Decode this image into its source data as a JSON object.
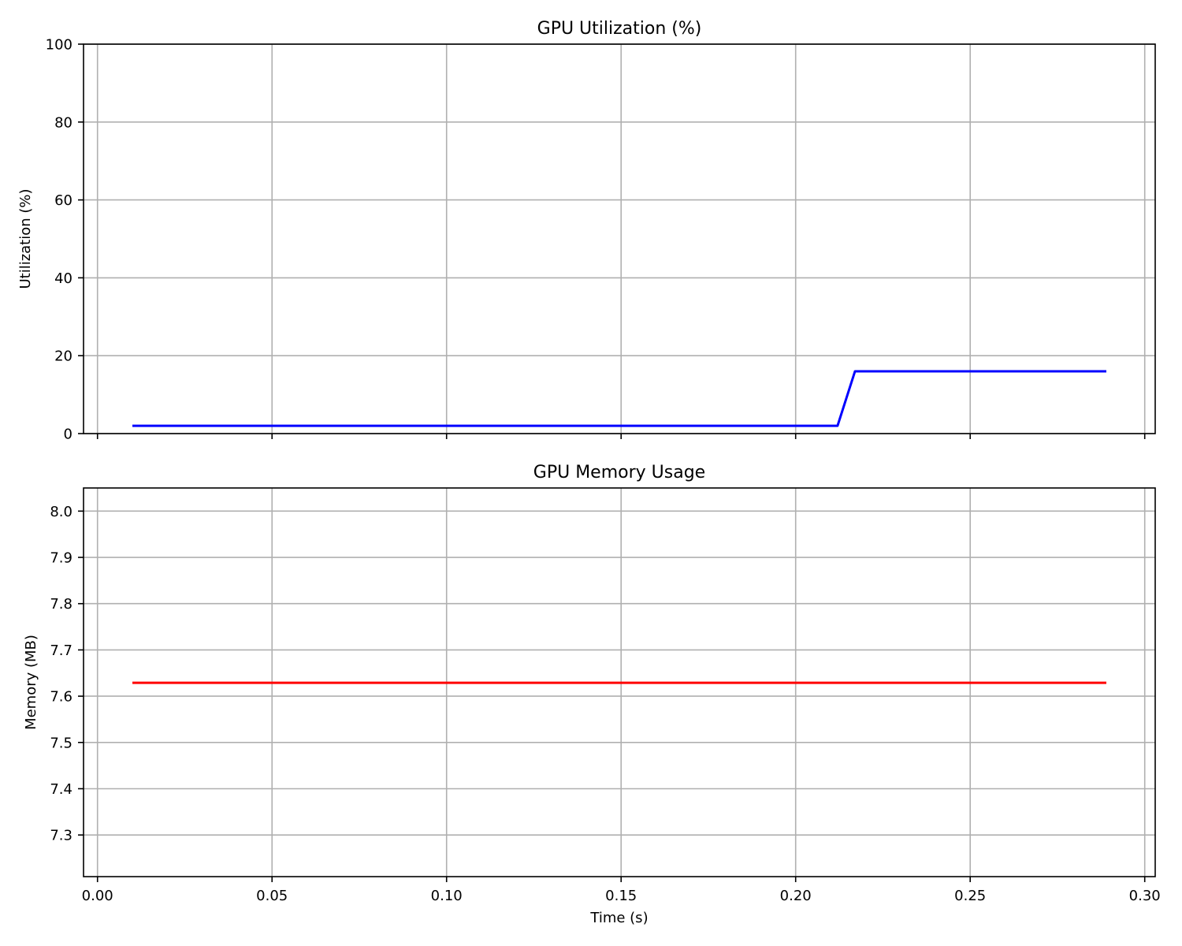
{
  "chart_data": [
    {
      "type": "line",
      "title": "GPU Utilization (%)",
      "xlabel": "",
      "ylabel": "Utilization (%)",
      "xlim": [
        -0.004,
        0.303
      ],
      "ylim": [
        0,
        100
      ],
      "xticks": [
        0.0,
        0.05,
        0.1,
        0.15,
        0.2,
        0.25,
        0.3
      ],
      "xtick_labels": [
        "",
        "",
        "",
        "",
        "",
        "",
        ""
      ],
      "yticks": [
        0,
        20,
        40,
        60,
        80,
        100
      ],
      "ytick_labels": [
        "0",
        "20",
        "40",
        "60",
        "80",
        "100"
      ],
      "grid": true,
      "series": [
        {
          "color": "#0000ff",
          "x": [
            0.01,
            0.212,
            0.217,
            0.289
          ],
          "y": [
            2,
            2,
            16,
            16
          ]
        }
      ]
    },
    {
      "type": "line",
      "title": "GPU Memory Usage",
      "xlabel": "Time (s)",
      "ylabel": "Memory (MB)",
      "xlim": [
        -0.004,
        0.303
      ],
      "ylim": [
        7.21,
        8.05
      ],
      "xticks": [
        0.0,
        0.05,
        0.1,
        0.15,
        0.2,
        0.25,
        0.3
      ],
      "xtick_labels": [
        "0.00",
        "0.05",
        "0.10",
        "0.15",
        "0.20",
        "0.25",
        "0.30"
      ],
      "yticks": [
        7.3,
        7.4,
        7.5,
        7.6,
        7.7,
        7.8,
        7.9,
        8.0
      ],
      "ytick_labels": [
        "7.3",
        "7.4",
        "7.5",
        "7.6",
        "7.7",
        "7.8",
        "7.9",
        "8.0"
      ],
      "grid": true,
      "series": [
        {
          "color": "#ff0000",
          "x": [
            0.01,
            0.289
          ],
          "y": [
            7.629,
            7.629
          ]
        }
      ]
    }
  ]
}
